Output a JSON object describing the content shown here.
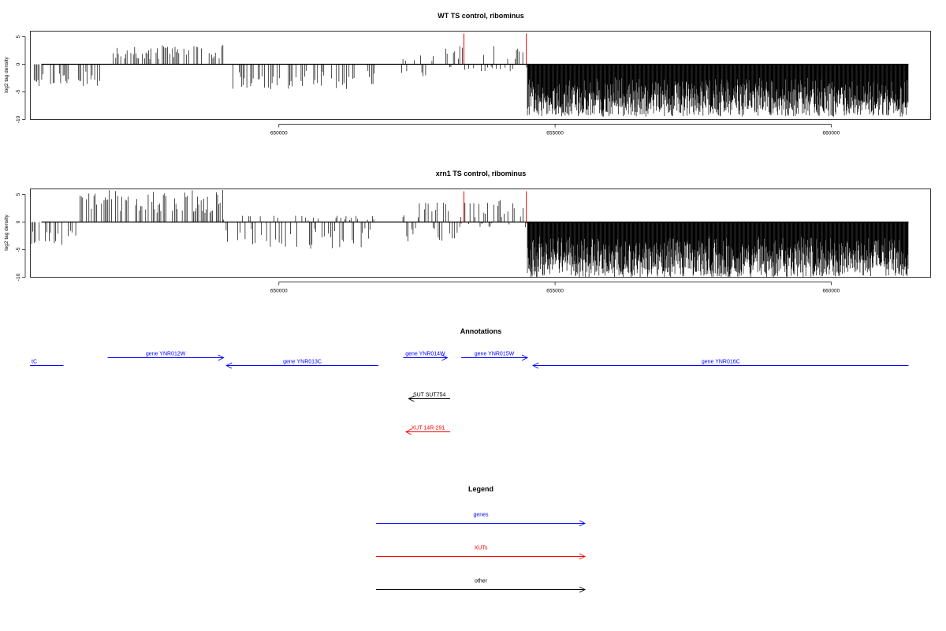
{
  "colors": {
    "bars": "#000000",
    "markers": "#ff0000",
    "genes": "#0000ff",
    "xuts": "#ff0000",
    "other": "#000000"
  },
  "chart_data": [
    {
      "type": "bar",
      "title": "WT TS control, ribominus",
      "ylabel": "log2 tag density",
      "xlim": [
        645500,
        661800
      ],
      "ylim": [
        -10,
        6
      ],
      "xticks": [
        650000,
        655000,
        660000
      ],
      "yticks": [
        -10,
        -5,
        0,
        5
      ],
      "grid": false,
      "markers_x": [
        653350,
        654480
      ],
      "segments": [
        {
          "x": [
            645500,
            646800
          ],
          "min": -4.0,
          "max": 0
        },
        {
          "x": [
            647000,
            649000
          ],
          "min": 0,
          "max": 3.5
        },
        {
          "x": [
            649100,
            651750
          ],
          "min": -4.5,
          "max": 0
        },
        {
          "x": [
            652200,
            652800
          ],
          "min": -3.0,
          "max": 1.8
        },
        {
          "x": [
            653000,
            654500
          ],
          "min": -1.5,
          "max": 3.5
        },
        {
          "x": [
            654500,
            661400
          ],
          "min": -9.5,
          "max": 0
        }
      ]
    },
    {
      "type": "bar",
      "title": "xrn1 TS control, ribominus",
      "ylabel": "log2 tag density",
      "xlim": [
        645500,
        661800
      ],
      "ylim": [
        -10,
        6
      ],
      "xticks": [
        650000,
        655000,
        660000
      ],
      "yticks": [
        -10,
        -5,
        0,
        5
      ],
      "grid": false,
      "markers_x": [
        653350,
        654480
      ],
      "segments": [
        {
          "x": [
            645500,
            646400
          ],
          "min": -4.5,
          "max": 0
        },
        {
          "x": [
            646400,
            649000
          ],
          "min": 0,
          "max": 5.8
        },
        {
          "x": [
            649000,
            651750
          ],
          "min": -5.0,
          "max": 1.2
        },
        {
          "x": [
            652200,
            653300
          ],
          "min": -4.0,
          "max": 4.0
        },
        {
          "x": [
            653300,
            654500
          ],
          "min": -1.0,
          "max": 4.0
        },
        {
          "x": [
            654500,
            661400
          ],
          "min": -10.0,
          "max": 0
        }
      ]
    }
  ],
  "annotations": {
    "title": "Annotations",
    "features": [
      {
        "label": "tC",
        "start": 645000,
        "end": 646100,
        "strand": "+",
        "type": "gene",
        "row": 1,
        "labelAt": "left",
        "clipped": true
      },
      {
        "label": "gene YNR012W",
        "start": 646900,
        "end": 649000,
        "strand": "+",
        "type": "gene",
        "row": 0
      },
      {
        "label": "gene YNR013C",
        "start": 649050,
        "end": 651800,
        "strand": "-",
        "type": "gene",
        "row": 1
      },
      {
        "label": "gene YNR014W",
        "start": 652250,
        "end": 653050,
        "strand": "+",
        "type": "gene",
        "row": 0
      },
      {
        "label": "gene YNR015W",
        "start": 653300,
        "end": 654500,
        "strand": "+",
        "type": "gene",
        "row": 0
      },
      {
        "label": "gene YNR016C",
        "start": 654600,
        "end": 661400,
        "strand": "-",
        "type": "gene",
        "row": 1
      },
      {
        "label": "SUT SUT754",
        "start": 652350,
        "end": 653100,
        "strand": "-",
        "type": "other",
        "row": 2
      },
      {
        "label": "XUT 14R-291",
        "start": 652300,
        "end": 653100,
        "strand": "-",
        "type": "xut",
        "row": 3
      }
    ]
  },
  "legend": {
    "title": "Legend",
    "items": [
      {
        "label": "genes",
        "type": "gene"
      },
      {
        "label": "XUTs",
        "type": "xut"
      },
      {
        "label": "other",
        "type": "other"
      }
    ]
  }
}
